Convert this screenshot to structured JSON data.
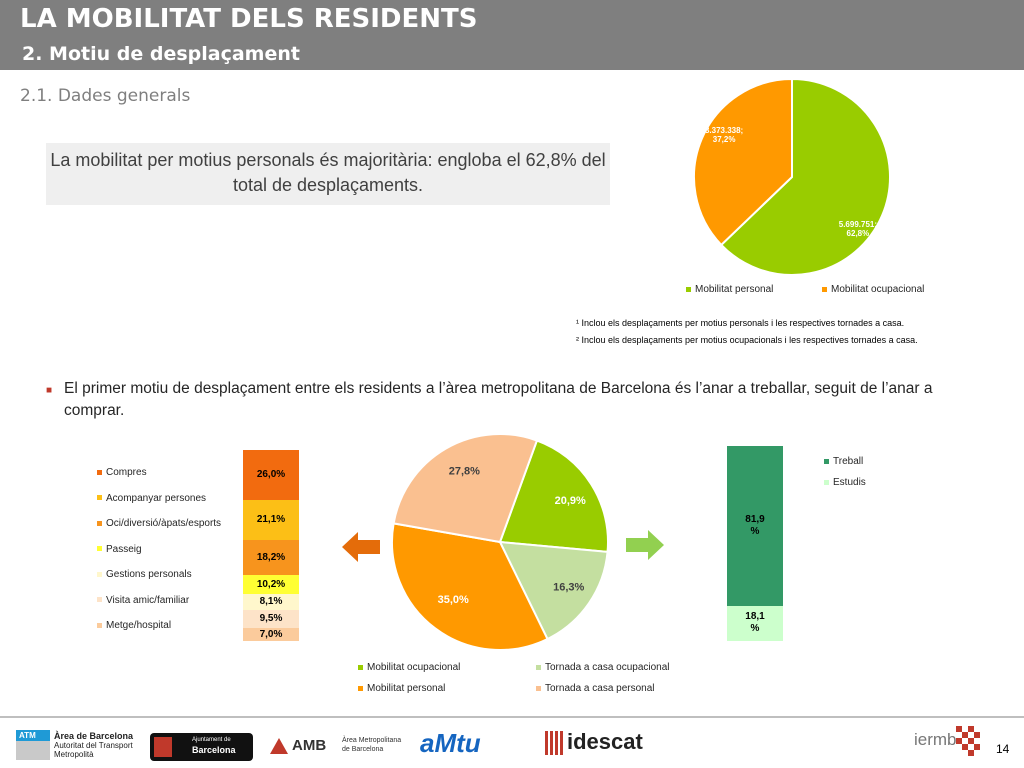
{
  "header": {
    "title": "LA MOBILITAT DELS RESIDENTS",
    "subtitle": "2. Motiu de desplaçament"
  },
  "section_title": "2.1. Dades generals",
  "callout": "La mobilitat per motius personals és majoritària: engloba el 62,8% del total de desplaçaments.",
  "footnotes": [
    "¹ Inclou els desplaçaments per motius personals i les respectives tornades a casa.",
    "² Inclou els desplaçaments per motius ocupacionals i les respectives tornades a casa."
  ],
  "bullet": "El primer motiu de desplaçament entre els residents a l’àrea metropolitana de Barcelona és l’anar a treballar, seguit de l’anar a comprar.",
  "page_number": "14",
  "logos": {
    "atm": "ATM",
    "atm_text1": "Àrea de Barcelona",
    "atm_text2": "Autoritat del Transport",
    "atm_text3": "Metropolità",
    "ajuntament1": "Ajuntament de",
    "ajuntament2": "Barcelona",
    "amb": "AMB",
    "amb_text1": "Àrea Metropolitana",
    "amb_text2": "de Barcelona",
    "amtu": "aMtu",
    "idescat": "idescat",
    "iermb": "iermb"
  },
  "colors": {
    "green": "#99cc00",
    "orange": "#ff9900",
    "light_green": "#c4dfa0",
    "peach": "#fac090",
    "dark_green": "#339966",
    "pale_green": "#ccffcc",
    "arrow": "#e46c0a",
    "arrow_green": "#92d050"
  },
  "chart_data": [
    {
      "type": "pie",
      "title": "",
      "series": [
        {
          "name": "Mobilitat personal",
          "value": 5699751,
          "label": "5.699.751;",
          "pct": "62,8%",
          "color": "#99cc00"
        },
        {
          "name": "Mobilitat ocupacional",
          "value": 3373338,
          "label": "3.373.338;",
          "pct": "37,2%",
          "color": "#ff9900"
        }
      ],
      "legend": [
        "Mobilitat personal",
        "Mobilitat ocupacional"
      ],
      "legend_position": "bottom"
    },
    {
      "type": "pie",
      "title": "",
      "series": [
        {
          "name": "Mobilitat ocupacional",
          "value": 20.9,
          "label": "20,9%",
          "color": "#99cc00"
        },
        {
          "name": "Tornada a casa ocupacional",
          "value": 16.3,
          "label": "16,3%",
          "color": "#c4dfa0"
        },
        {
          "name": "Mobilitat personal",
          "value": 35.0,
          "label": "35,0%",
          "color": "#ff9900"
        },
        {
          "name": "Tornada a casa personal",
          "value": 27.8,
          "label": "27,8%",
          "color": "#fac090"
        }
      ],
      "legend": [
        "Mobilitat ocupacional",
        "Tornada a casa ocupacional",
        "Mobilitat personal",
        "Tornada a casa personal"
      ],
      "legend_position": "bottom"
    },
    {
      "type": "bar",
      "stacked": true,
      "series": [
        {
          "name": "Compres",
          "value": 26.0,
          "label": "26,0%",
          "color": "#f26b0f"
        },
        {
          "name": "Acompanyar persones",
          "value": 21.1,
          "label": "21,1%",
          "color": "#fcbf16"
        },
        {
          "name": "Oci/diversió/àpats/esports",
          "value": 18.2,
          "label": "18,2%",
          "color": "#f7941d"
        },
        {
          "name": "Passeig",
          "value": 10.2,
          "label": "10,2%",
          "color": "#ffff33"
        },
        {
          "name": "Gestions personals",
          "value": 8.1,
          "label": "8,1%",
          "color": "#fff7cc"
        },
        {
          "name": "Visita amic/familiar",
          "value": 9.5,
          "label": "9,5%",
          "color": "#fde3c8"
        },
        {
          "name": "Metge/hospital",
          "value": 7.0,
          "label": "7,0%",
          "color": "#fbcb9c"
        }
      ],
      "legend_position": "left"
    },
    {
      "type": "bar",
      "stacked": true,
      "series": [
        {
          "name": "Treball",
          "value": 81.9,
          "label": "81,9",
          "unit": "%",
          "color": "#339966"
        },
        {
          "name": "Estudis",
          "value": 18.1,
          "label": "18,1",
          "unit": "%",
          "color": "#ccffcc"
        }
      ],
      "legend_position": "right"
    }
  ]
}
